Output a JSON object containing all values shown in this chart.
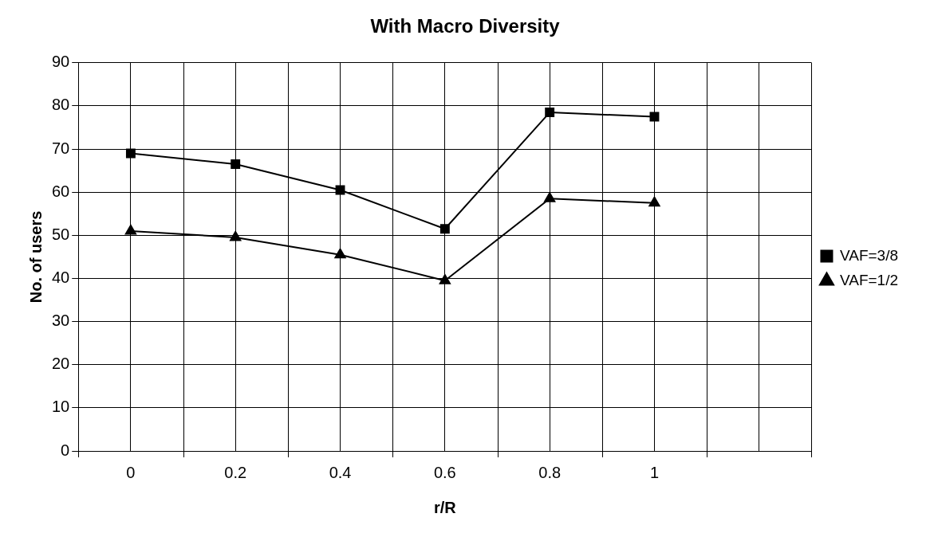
{
  "chart_data": {
    "type": "line",
    "title": "With Macro Diversity",
    "xlabel": "r/R",
    "ylabel": "No. of users",
    "categories": [
      "0",
      "0.2",
      "0.4",
      "0.6",
      "0.8",
      "1",
      null
    ],
    "series": [
      {
        "name": "VAF=3/8",
        "color": "#000000",
        "marker": "square",
        "values": [
          69,
          66.5,
          60.5,
          51.5,
          78.5,
          77.5,
          null
        ]
      },
      {
        "name": "VAF=1/2",
        "color": "#000000",
        "marker": "triangle",
        "values": [
          51,
          49.5,
          45.5,
          39.5,
          58.5,
          57.5,
          null
        ]
      }
    ],
    "ylim": [
      0,
      90
    ],
    "yticks": [
      0,
      10,
      20,
      30,
      40,
      50,
      60,
      70,
      80,
      90
    ],
    "grid": true,
    "legend": "right",
    "line_style": "solid"
  }
}
